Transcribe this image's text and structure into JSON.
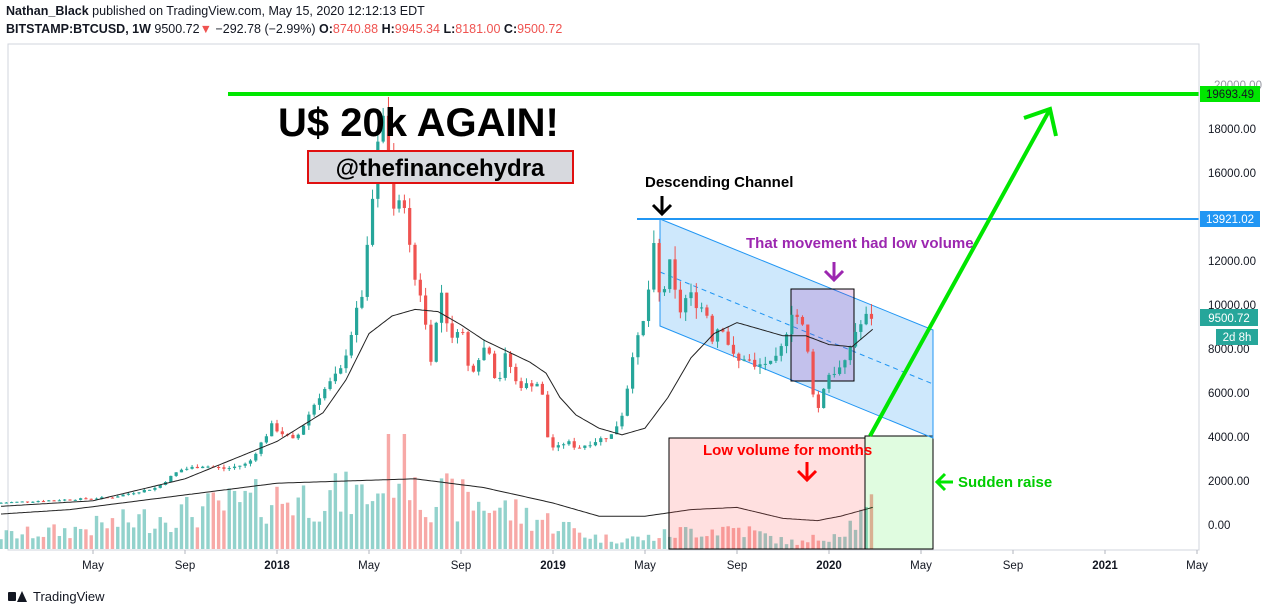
{
  "header": {
    "author": "Nathan_Black",
    "published_text": "published on TradingView.com, May 15, 2020 12:12:13 EDT",
    "symbol": "BITSTAMP:BTCUSD, 1W",
    "last": "9500.72",
    "change": "−292.78 (−2.99%)",
    "o_label": "O:",
    "o_value": "8740.88",
    "h_label": "H:",
    "h_value": "9945.34",
    "l_label": "L:",
    "l_value": "8181.00",
    "c_label": "C:",
    "c_value": "9500.72"
  },
  "footer": {
    "brand": "TradingView"
  },
  "colors": {
    "up": "#26a69a",
    "down": "#ef5350",
    "green_line": "#00e600",
    "channel": "#2196f3",
    "purple": "#9c27b0",
    "label_red": "#ff0000"
  },
  "chart_data": {
    "type": "candlestick",
    "symbol": "BITSTAMP:BTCUSD",
    "interval": "1W",
    "ylim": [
      -500,
      20500
    ],
    "y_ticks": [
      "0.00",
      "2000.00",
      "4000.00",
      "6000.00",
      "8000.00",
      "10000.00",
      "12000.00",
      "14000.00",
      "16000.00",
      "18000.00"
    ],
    "x_ticks": [
      "May",
      "Sep",
      "2018",
      "May",
      "Sep",
      "2019",
      "May",
      "Sep",
      "2020",
      "May",
      "Sep",
      "2021",
      "May"
    ],
    "x_tick_months": [
      4,
      8,
      12,
      16,
      20,
      24,
      28,
      32,
      36,
      40,
      44,
      48,
      52
    ],
    "x_start_label": "2017-01",
    "price_path": [
      [
        0,
        1000
      ],
      [
        3,
        1150
      ],
      [
        5,
        1250
      ],
      [
        7,
        1700
      ],
      [
        8,
        2500
      ],
      [
        9,
        2700
      ],
      [
        10,
        2550
      ],
      [
        11,
        2800
      ],
      [
        12,
        4500
      ],
      [
        13,
        3800
      ],
      [
        14,
        5800
      ],
      [
        15,
        7000
      ],
      [
        16,
        10800
      ],
      [
        16.6,
        17000
      ],
      [
        16.9,
        18800
      ],
      [
        17.1,
        16500
      ],
      [
        17.4,
        13500
      ],
      [
        17.7,
        15500
      ],
      [
        18.1,
        11500
      ],
      [
        18.5,
        10500
      ],
      [
        18.9,
        7500
      ],
      [
        19.4,
        10700
      ],
      [
        19.8,
        8200
      ],
      [
        20.2,
        9400
      ],
      [
        20.6,
        6800
      ],
      [
        21,
        7700
      ],
      [
        21.4,
        8300
      ],
      [
        21.8,
        6300
      ],
      [
        22.2,
        7800
      ],
      [
        22.6,
        6500
      ],
      [
        23,
        6300
      ],
      [
        23.4,
        6500
      ],
      [
        23.7,
        6400
      ],
      [
        24,
        4000
      ],
      [
        24.3,
        3400
      ],
      [
        24.8,
        3800
      ],
      [
        25.3,
        3500
      ],
      [
        26,
        3800
      ],
      [
        26.8,
        4100
      ],
      [
        27.3,
        5200
      ],
      [
        27.7,
        7900
      ],
      [
        28.1,
        8800
      ],
      [
        28.4,
        10800
      ],
      [
        28.6,
        12600
      ],
      [
        28.9,
        10000
      ],
      [
        29.3,
        11800
      ],
      [
        29.7,
        9600
      ],
      [
        30.1,
        10500
      ],
      [
        30.5,
        10100
      ],
      [
        30.9,
        9700
      ],
      [
        31.2,
        8300
      ],
      [
        31.5,
        9400
      ],
      [
        31.9,
        8100
      ],
      [
        32.2,
        7300
      ],
      [
        32.6,
        7700
      ],
      [
        33,
        7100
      ],
      [
        33.4,
        7400
      ],
      [
        33.8,
        7200
      ],
      [
        34.2,
        8100
      ],
      [
        34.6,
        9800
      ],
      [
        34.9,
        9400
      ],
      [
        35.2,
        8700
      ],
      [
        35.5,
        6200
      ],
      [
        35.8,
        5200
      ],
      [
        36.1,
        6800
      ],
      [
        36.5,
        7000
      ],
      [
        36.9,
        7200
      ],
      [
        37.3,
        8700
      ],
      [
        37.6,
        9100
      ],
      [
        37.9,
        9500
      ]
    ],
    "moving_average_path": [
      [
        0,
        850
      ],
      [
        4,
        1100
      ],
      [
        8,
        2100
      ],
      [
        12,
        3800
      ],
      [
        14,
        5100
      ],
      [
        15,
        6600
      ],
      [
        16,
        8700
      ],
      [
        17,
        9500
      ],
      [
        18,
        9800
      ],
      [
        19,
        9700
      ],
      [
        20,
        9100
      ],
      [
        21,
        8400
      ],
      [
        22,
        7900
      ],
      [
        23,
        7400
      ],
      [
        23.7,
        6900
      ],
      [
        24.3,
        5800
      ],
      [
        25,
        5000
      ],
      [
        26,
        4400
      ],
      [
        27,
        4100
      ],
      [
        28,
        4400
      ],
      [
        29,
        5800
      ],
      [
        30,
        7600
      ],
      [
        31,
        8700
      ],
      [
        32,
        9200
      ],
      [
        33,
        8900
      ],
      [
        34,
        8600
      ],
      [
        35,
        8600
      ],
      [
        36,
        8200
      ],
      [
        37,
        8100
      ],
      [
        37.9,
        8900
      ]
    ],
    "volume_ma_path": [
      [
        0,
        500
      ],
      [
        3,
        700
      ],
      [
        6,
        1100
      ],
      [
        9,
        1500
      ],
      [
        12,
        1900
      ],
      [
        15,
        2000
      ],
      [
        18,
        2100
      ],
      [
        21,
        1700
      ],
      [
        24,
        1000
      ],
      [
        26,
        400
      ],
      [
        28,
        400
      ],
      [
        30,
        700
      ],
      [
        32,
        800
      ],
      [
        34,
        300
      ],
      [
        35.5,
        200
      ],
      [
        36.5,
        400
      ],
      [
        37.9,
        800
      ]
    ],
    "annotations": {
      "title_text": "U$ 20k AGAIN!",
      "handle_text": "@thefinancehydra",
      "descending_channel_text": "Descending Channel",
      "low_volume_movement_text": "That movement had low volume",
      "low_volume_months_text": "Low volume for months",
      "sudden_raise_text": "Sudden raise",
      "resistance_20k": 19693.49,
      "resistance_14k": 13921.02,
      "label_20k": "19693.49",
      "label_14k": "13921.02",
      "label_last": "9500.72",
      "label_countdown": "2d 8h",
      "partial_top_tick": "20000.00"
    }
  }
}
